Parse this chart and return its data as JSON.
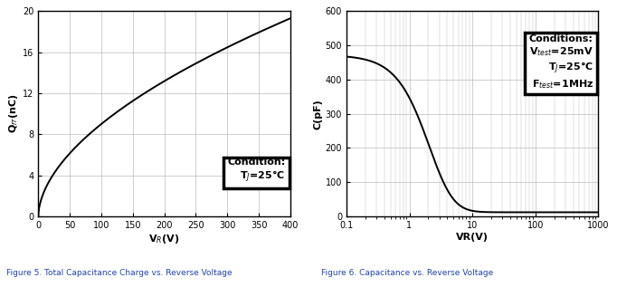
{
  "fig5": {
    "caption": "Figure 5. Total Capacitance Charge vs. Reverse Voltage",
    "xlabel": "V$_R$(V)",
    "ylabel": "Q$_{rr}$(nC)",
    "xlim": [
      0,
      400
    ],
    "ylim": [
      0,
      20
    ],
    "xticks": [
      0,
      50,
      100,
      150,
      200,
      250,
      300,
      350,
      400
    ],
    "yticks": [
      0,
      4,
      8,
      12,
      16,
      20
    ],
    "condition_line1": "Condition:",
    "condition_line2": "T$_J$=25°C",
    "grid_color": "#bbbbbb",
    "line_color": "#000000",
    "curve_power": 0.55
  },
  "fig6": {
    "caption": "Figure 6. Capacitance vs. Reverse Voltage",
    "xlabel": "VR(V)",
    "ylabel": "C(pF)",
    "xlim": [
      0.1,
      1000
    ],
    "ylim": [
      0,
      600
    ],
    "yticks": [
      0,
      100,
      200,
      300,
      400,
      500,
      600
    ],
    "xtick_vals": [
      0.1,
      1,
      10,
      100,
      1000
    ],
    "xtick_labels": [
      "0.1",
      "1",
      "10",
      "100",
      "1000"
    ],
    "conditions_line1": "Conditions:",
    "conditions_line2": "V$_{test}$=25mV",
    "conditions_line3": "T$_J$=25°C",
    "conditions_line4": "F$_{test}$=1MHz",
    "grid_color": "#bbbbbb",
    "line_color": "#000000"
  },
  "caption_color": "#2244aa",
  "background": "#ffffff"
}
